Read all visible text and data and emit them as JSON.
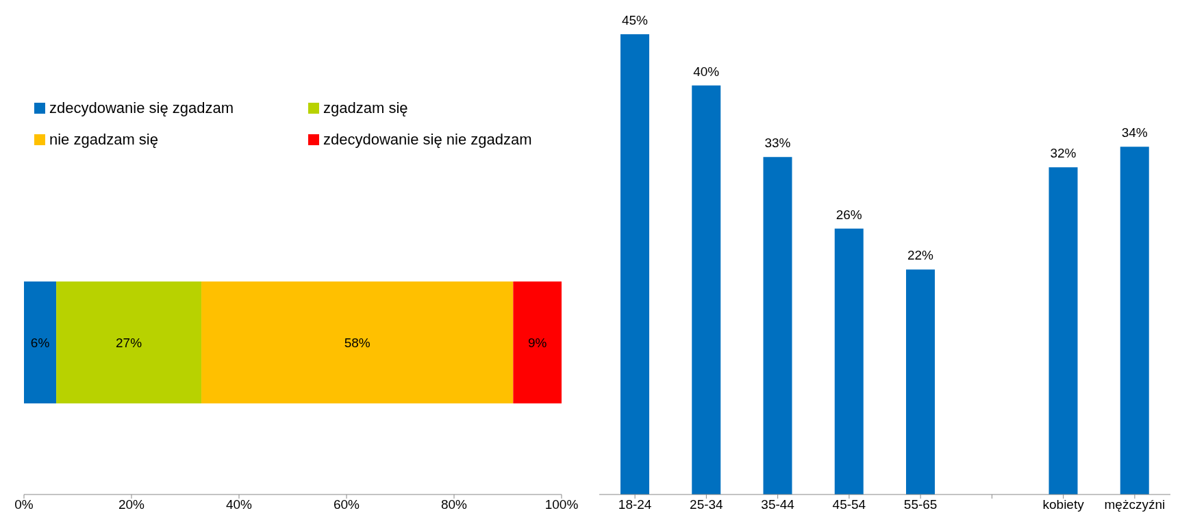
{
  "chart_data": [
    {
      "type": "bar",
      "orientation": "horizontal",
      "stacked": true,
      "categories": [
        null
      ],
      "series": [
        {
          "name": "zdecydowanie się zgadzam",
          "color": "#0070c0",
          "values": [
            6
          ],
          "value_labels": [
            "6%"
          ]
        },
        {
          "name": "zgadzam się",
          "color": "#b8d200",
          "values": [
            27
          ],
          "value_labels": [
            "27%"
          ]
        },
        {
          "name": "nie zgadzam się",
          "color": "#ffc000",
          "values": [
            58
          ],
          "value_labels": [
            "58%"
          ]
        },
        {
          "name": "zdecydowanie się nie zgadzam",
          "color": "#ff0000",
          "values": [
            9
          ],
          "value_labels": [
            "9%"
          ]
        }
      ],
      "xlim": [
        0,
        100
      ],
      "xticks": [
        {
          "value": 0,
          "label": "0%"
        },
        {
          "value": 20,
          "label": "20%"
        },
        {
          "value": 40,
          "label": "40%"
        },
        {
          "value": 60,
          "label": "60%"
        },
        {
          "value": 80,
          "label": "80%"
        },
        {
          "value": 100,
          "label": "100%"
        }
      ],
      "legend": "top"
    },
    {
      "type": "bar",
      "categories": [
        "18-24",
        "25-34",
        "35-44",
        "45-54",
        "55-65",
        null,
        "kobiety",
        "mężczyźni"
      ],
      "values": [
        45,
        40,
        33,
        26,
        22,
        null,
        32,
        34
      ],
      "color": "#0070c0",
      "value_labels": [
        "45%",
        "40%",
        "33%",
        "26%",
        "22%",
        null,
        "32%",
        "34%"
      ]
    }
  ]
}
